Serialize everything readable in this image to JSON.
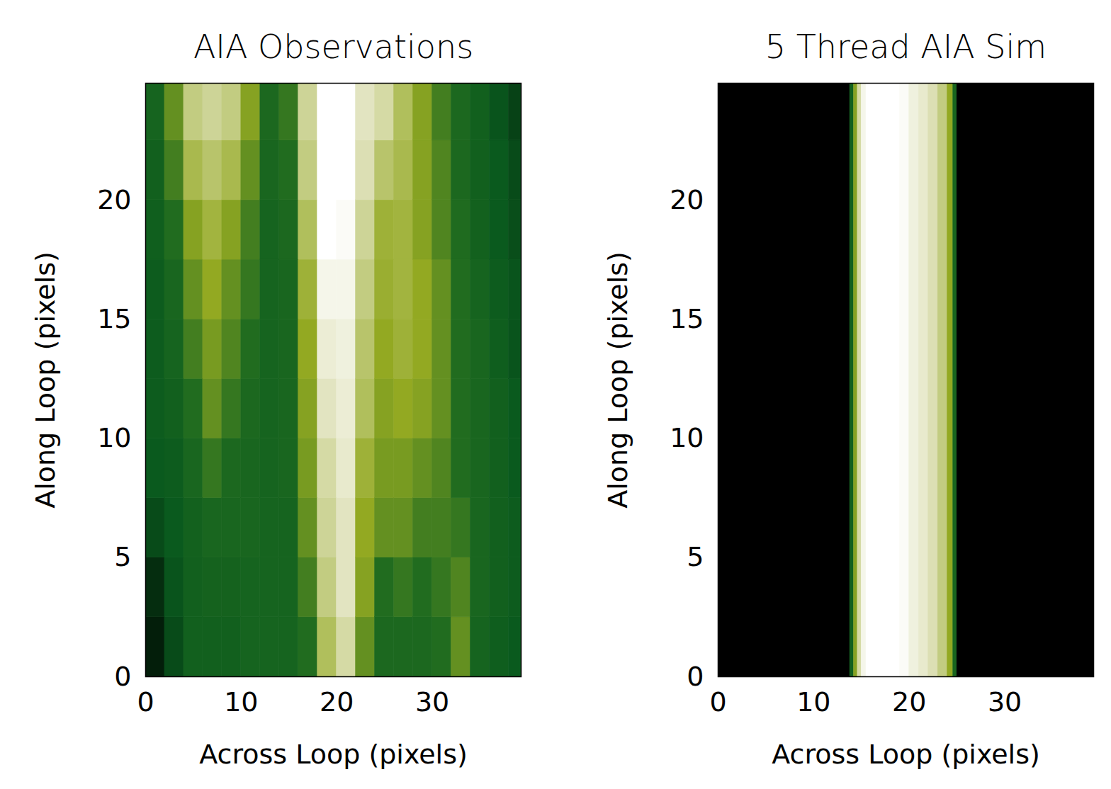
{
  "chart_data": [
    {
      "type": "heatmap",
      "title": "AIA Observations",
      "x_label": "Across Loop (pixels)",
      "y_label": "Along Loop (pixels)",
      "xlim": [
        0,
        39.3
      ],
      "ylim": [
        0,
        24.9
      ],
      "xticks": [
        0,
        10,
        20,
        30
      ],
      "yticks": [
        0,
        5,
        10,
        15,
        20
      ],
      "x_edges": [
        0,
        2,
        4,
        6,
        8,
        10,
        12,
        14,
        16,
        18,
        20,
        22,
        24,
        26,
        28,
        30,
        32,
        34,
        36,
        38,
        40
      ],
      "y_edges": [
        0,
        2.5,
        5,
        7.5,
        10,
        12.5,
        15,
        17.5,
        20,
        22.5,
        25
      ],
      "cells": [
        [
          10,
          25,
          35,
          35,
          35,
          38,
          38,
          38,
          45,
          70,
          80,
          55,
          42,
          42,
          42,
          45,
          55,
          38,
          33,
          30
        ],
        [
          15,
          28,
          35,
          37,
          37,
          38,
          38,
          38,
          50,
          75,
          85,
          60,
          45,
          48,
          45,
          48,
          52,
          40,
          35,
          32
        ],
        [
          25,
          30,
          36,
          40,
          40,
          40,
          38,
          38,
          55,
          78,
          85,
          62,
          55,
          55,
          50,
          50,
          48,
          40,
          35,
          32
        ],
        [
          30,
          32,
          40,
          48,
          42,
          40,
          38,
          40,
          58,
          80,
          88,
          65,
          58,
          58,
          55,
          52,
          45,
          40,
          35,
          30
        ],
        [
          32,
          35,
          45,
          55,
          48,
          42,
          38,
          40,
          60,
          85,
          90,
          70,
          60,
          62,
          60,
          55,
          45,
          40,
          35,
          30
        ],
        [
          32,
          38,
          50,
          58,
          52,
          45,
          38,
          40,
          62,
          90,
          92,
          72,
          62,
          65,
          62,
          55,
          45,
          40,
          33,
          28
        ],
        [
          32,
          40,
          55,
          62,
          55,
          48,
          38,
          40,
          65,
          95,
          95,
          75,
          64,
          66,
          62,
          55,
          45,
          38,
          32,
          28
        ],
        [
          34,
          45,
          60,
          66,
          60,
          50,
          38,
          42,
          70,
          100,
          98,
          78,
          65,
          66,
          60,
          52,
          44,
          36,
          30,
          26
        ],
        [
          35,
          50,
          68,
          72,
          68,
          55,
          40,
          45,
          75,
          100,
          100,
          82,
          72,
          68,
          60,
          52,
          42,
          35,
          30,
          25
        ],
        [
          38,
          55,
          75,
          78,
          75,
          60,
          42,
          48,
          78,
          100,
          100,
          85,
          80,
          70,
          60,
          50,
          42,
          35,
          28,
          22
        ]
      ]
    },
    {
      "type": "heatmap",
      "title": "5 Thread AIA Sim",
      "x_label": "Across Loop (pixels)",
      "y_label": "Along Loop (pixels)",
      "xlim": [
        0,
        39.3
      ],
      "ylim": [
        0,
        24.9
      ],
      "xticks": [
        0,
        10,
        20,
        30
      ],
      "yticks": [
        0,
        5,
        10,
        15,
        20
      ],
      "x_edges": [
        0,
        13.8,
        14.2,
        14.6,
        15,
        15.5,
        16,
        17,
        18,
        19,
        20,
        21,
        22,
        23,
        24,
        24.6,
        25,
        39.3
      ],
      "y_edges": [
        0,
        24.9
      ],
      "cells": [
        [
          0,
          35,
          60,
          80,
          95,
          100,
          100,
          100,
          100,
          98,
          92,
          88,
          82,
          75,
          62,
          40,
          0
        ]
      ]
    }
  ]
}
